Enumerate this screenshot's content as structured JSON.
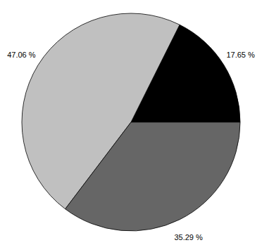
{
  "chart_data": {
    "type": "pie",
    "values": [
      17.65,
      47.06,
      35.29
    ],
    "value_labels": [
      "17.65 %",
      "47.06 %",
      "35.29 %"
    ],
    "colors": [
      "#000000",
      "#c0c0c0",
      "#666666"
    ],
    "data_labels": true
  }
}
